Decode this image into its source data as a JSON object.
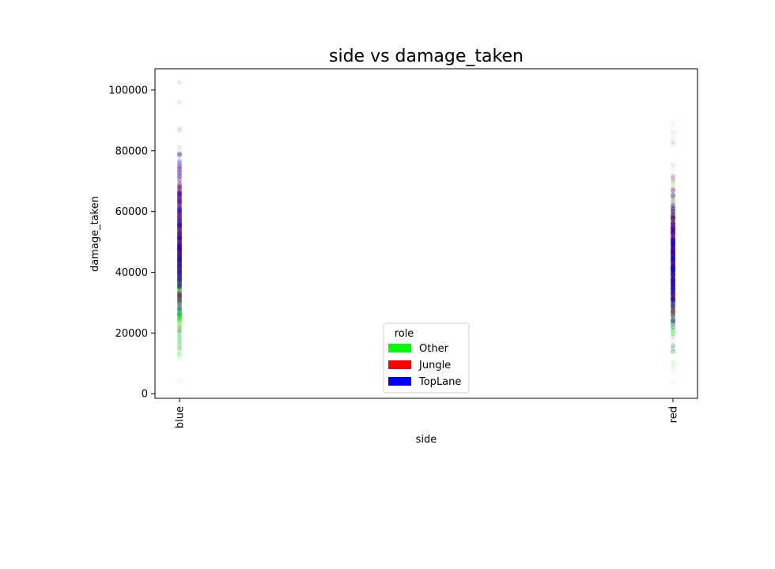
{
  "chart_data": {
    "type": "scatter",
    "title": "side vs damage_taken",
    "xlabel": "side",
    "ylabel": "damage_taken",
    "x_categories": [
      "blue",
      "red"
    ],
    "ylim": [
      -1500,
      107000
    ],
    "y_ticks": [
      0,
      20000,
      40000,
      60000,
      80000,
      100000
    ],
    "y_tick_labels": [
      "0",
      "20000",
      "40000",
      "60000",
      "80000",
      "100000"
    ],
    "grid": false,
    "legend": {
      "title": "role",
      "placement": "lower-center",
      "entries": [
        {
          "name": "Other",
          "color": "#00ff00"
        },
        {
          "name": "Jungle",
          "color": "#ff0000"
        },
        {
          "name": "TopLane",
          "color": "#0000ff"
        }
      ]
    },
    "series": [
      {
        "name": "Other",
        "color": "#00ff00",
        "points": [
          {
            "side": "blue",
            "min": 4500,
            "max": 80000
          },
          {
            "side": "red",
            "min": 4000,
            "max": 89000
          }
        ]
      },
      {
        "name": "Jungle",
        "color": "#ff0000",
        "points": [
          {
            "side": "blue",
            "min": 15000,
            "max": 96000
          },
          {
            "side": "red",
            "min": 15000,
            "max": 86000
          }
        ]
      },
      {
        "name": "TopLane",
        "color": "#0000ff",
        "points": [
          {
            "side": "blue",
            "min": 15000,
            "max": 102500
          },
          {
            "side": "red",
            "min": 14000,
            "max": 83000
          }
        ]
      }
    ]
  }
}
